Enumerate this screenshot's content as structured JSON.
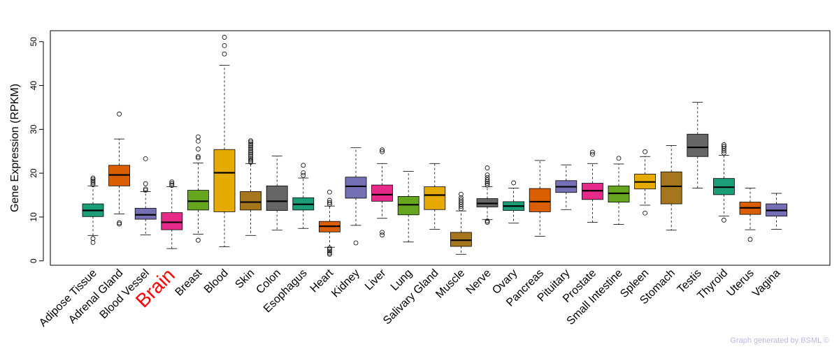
{
  "chart_data": {
    "type": "boxplot",
    "ylabel": "Gene Expression (RPKM)",
    "xlabel": "",
    "ylim": [
      -1,
      52.5
    ],
    "yticks": [
      0,
      10,
      20,
      30,
      40,
      50
    ],
    "highlight": "Brain",
    "highlight_color": "#ff0000",
    "categories": [
      "Adipose Tissue",
      "Adrenal Gland",
      "Blood Vessel",
      "Brain",
      "Breast",
      "Blood",
      "Skin",
      "Colon",
      "Esophagus",
      "Heart",
      "Kidney",
      "Liver",
      "Lung",
      "Salivary Gland",
      "Muscle",
      "Nerve",
      "Ovary",
      "Pancreas",
      "Pituitary",
      "Prostate",
      "Small Intestine",
      "Spleen",
      "Stomach",
      "Testis",
      "Thyroid",
      "Uterus",
      "Vagina"
    ],
    "colors": [
      "#1b9e77",
      "#d95f02",
      "#7570b3",
      "#e7298a",
      "#66a61e",
      "#e6ab02",
      "#a6761d",
      "#666666",
      "#1b9e77",
      "#d95f02",
      "#7570b3",
      "#e7298a",
      "#66a61e",
      "#e6ab02",
      "#a6761d",
      "#666666",
      "#1b9e77",
      "#d95f02",
      "#7570b3",
      "#e7298a",
      "#66a61e",
      "#e6ab02",
      "#a6761d",
      "#666666",
      "#1b9e77",
      "#d95f02",
      "#7570b3"
    ],
    "boxes": [
      {
        "min": 5.8,
        "q1": 10.1,
        "median": 11.5,
        "q3": 13.0,
        "max": 17.1,
        "outliers": [
          4.2,
          5.1,
          17.4,
          17.8,
          18.2,
          18.6,
          18.9
        ]
      },
      {
        "min": 10.7,
        "q1": 17.1,
        "median": 19.6,
        "q3": 21.8,
        "max": 27.8,
        "outliers": [
          8.4,
          8.7,
          33.5
        ]
      },
      {
        "min": 5.9,
        "q1": 9.5,
        "median": 10.5,
        "q3": 12.0,
        "max": 15.8,
        "outliers": [
          16.1,
          16.4,
          17.6,
          23.3
        ]
      },
      {
        "min": 2.8,
        "q1": 7.1,
        "median": 8.8,
        "q3": 11.0,
        "max": 16.9,
        "outliers": [
          17.2,
          17.6,
          18.0
        ]
      },
      {
        "min": 6.1,
        "q1": 11.6,
        "median": 13.6,
        "q3": 16.1,
        "max": 22.3,
        "outliers": [
          4.7,
          23.5,
          23.8,
          25.5,
          27.3,
          28.3
        ]
      },
      {
        "min": 3.2,
        "q1": 11.2,
        "median": 20.1,
        "q3": 25.4,
        "max": 44.6,
        "outliers": [
          47.2,
          49.1,
          51.0
        ]
      },
      {
        "min": 5.8,
        "q1": 11.6,
        "median": 13.4,
        "q3": 15.8,
        "max": 22.2,
        "outliers": [
          22.5,
          22.8,
          23.1,
          23.5,
          23.9,
          24.3,
          24.7,
          25.1,
          25.5,
          25.9,
          26.3,
          26.7,
          27.1,
          27.4
        ]
      },
      {
        "min": 7.0,
        "q1": 11.5,
        "median": 13.6,
        "q3": 17.1,
        "max": 23.9,
        "outliers": []
      },
      {
        "min": 7.4,
        "q1": 11.6,
        "median": 12.9,
        "q3": 14.4,
        "max": 18.9,
        "outliers": [
          19.5,
          20.1,
          21.8
        ]
      },
      {
        "min": 3.1,
        "q1": 6.6,
        "median": 7.9,
        "q3": 9.0,
        "max": 12.5,
        "outliers": [
          1.5,
          1.8,
          2.2,
          2.6,
          2.9,
          12.9,
          13.3,
          13.8,
          15.7
        ]
      },
      {
        "min": 8.1,
        "q1": 14.3,
        "median": 17.0,
        "q3": 19.1,
        "max": 25.8,
        "outliers": [
          4.1
        ]
      },
      {
        "min": 9.7,
        "q1": 13.6,
        "median": 15.1,
        "q3": 17.3,
        "max": 22.2,
        "outliers": [
          5.9,
          6.5,
          24.9,
          25.3
        ]
      },
      {
        "min": 4.3,
        "q1": 10.5,
        "median": 12.8,
        "q3": 14.7,
        "max": 20.4,
        "outliers": []
      },
      {
        "min": 7.2,
        "q1": 11.7,
        "median": 15.0,
        "q3": 16.9,
        "max": 22.2,
        "outliers": []
      },
      {
        "min": 1.5,
        "q1": 3.3,
        "median": 4.7,
        "q3": 6.5,
        "max": 11.4,
        "outliers": [
          11.9,
          12.4,
          12.9,
          13.4,
          13.9,
          14.4,
          15.2
        ]
      },
      {
        "min": 9.4,
        "q1": 12.3,
        "median": 13.1,
        "q3": 14.2,
        "max": 16.9,
        "outliers": [
          8.8,
          9.1,
          17.3,
          17.7,
          18.1,
          18.5,
          19.0,
          19.6,
          21.2
        ]
      },
      {
        "min": 8.6,
        "q1": 11.5,
        "median": 12.5,
        "q3": 13.5,
        "max": 16.6,
        "outliers": [
          17.8
        ]
      },
      {
        "min": 5.6,
        "q1": 11.2,
        "median": 13.5,
        "q3": 16.5,
        "max": 22.9,
        "outliers": []
      },
      {
        "min": 11.7,
        "q1": 15.6,
        "median": 16.9,
        "q3": 18.3,
        "max": 21.9,
        "outliers": []
      },
      {
        "min": 8.8,
        "q1": 14.0,
        "median": 16.0,
        "q3": 17.7,
        "max": 22.2,
        "outliers": [
          24.3,
          24.8
        ]
      },
      {
        "min": 8.3,
        "q1": 13.4,
        "median": 15.4,
        "q3": 17.1,
        "max": 22.1,
        "outliers": [
          23.4
        ]
      },
      {
        "min": 12.7,
        "q1": 16.4,
        "median": 18.0,
        "q3": 19.8,
        "max": 23.8,
        "outliers": [
          10.9,
          24.9
        ]
      },
      {
        "min": 7.0,
        "q1": 13.0,
        "median": 17.0,
        "q3": 20.3,
        "max": 26.3,
        "outliers": []
      },
      {
        "min": 16.6,
        "q1": 23.8,
        "median": 25.9,
        "q3": 28.9,
        "max": 36.2,
        "outliers": []
      },
      {
        "min": 10.2,
        "q1": 15.1,
        "median": 16.8,
        "q3": 18.8,
        "max": 24.1,
        "outliers": [
          9.3,
          24.6,
          25.1,
          25.6,
          26.1,
          26.5
        ]
      },
      {
        "min": 7.1,
        "q1": 10.6,
        "median": 12.1,
        "q3": 13.4,
        "max": 16.6,
        "outliers": [
          4.9
        ]
      },
      {
        "min": 7.2,
        "q1": 10.2,
        "median": 11.5,
        "q3": 13.0,
        "max": 15.4,
        "outliers": []
      }
    ]
  },
  "credit": "Graph generated by BSML ©"
}
